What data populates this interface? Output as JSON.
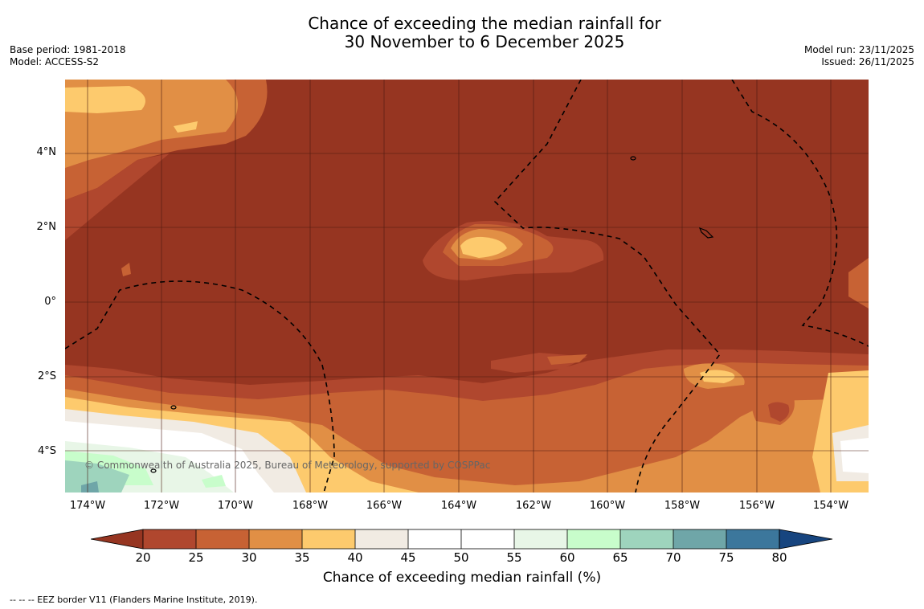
{
  "title": {
    "line1": "Chance of exceeding the median rainfall for",
    "line2": "30 November to 6 December 2025"
  },
  "meta_left": {
    "base_period": "Base period: 1981-2018",
    "model": "Model: ACCESS-S2"
  },
  "meta_right": {
    "model_run": "Model run: 23/11/2025",
    "issued": "Issued: 26/11/2025"
  },
  "map": {
    "region": "Central Pacific (Kiribati / Line Islands)",
    "lat_labels": [
      "4°N",
      "2°N",
      "0°",
      "2°S",
      "4°S"
    ],
    "lon_labels": [
      "174°W",
      "172°W",
      "170°W",
      "168°W",
      "166°W",
      "164°W",
      "162°W",
      "160°W",
      "158°W",
      "156°W",
      "154°W"
    ],
    "copyright": "© Commonwealth of Australia 2025, Bureau of Meteorology, supported by COSPPac"
  },
  "colorbar": {
    "ticks": [
      "20",
      "25",
      "30",
      "35",
      "40",
      "45",
      "50",
      "55",
      "60",
      "65",
      "70",
      "75",
      "80"
    ],
    "colors": {
      "lt20": "#963521",
      "20_25": "#b0472e",
      "25_30": "#c76234",
      "30_35": "#e18f45",
      "35_40": "#fdca6d",
      "40_45": "#f1ebe3",
      "45_50": "#ffffff",
      "50_55": "#ffffff",
      "55_60": "#e8f6e7",
      "60_65": "#c8fdcb",
      "65_70": "#9ed4bd",
      "70_75": "#6fa6a8",
      "75_80": "#3c779c",
      "gt80": "#17457f"
    },
    "label": "Chance of exceeding median rainfall (%)"
  },
  "footer": {
    "eez_marker": "-- -- -- EEZ border V11 (Flanders Marine Institute, 2019)."
  }
}
